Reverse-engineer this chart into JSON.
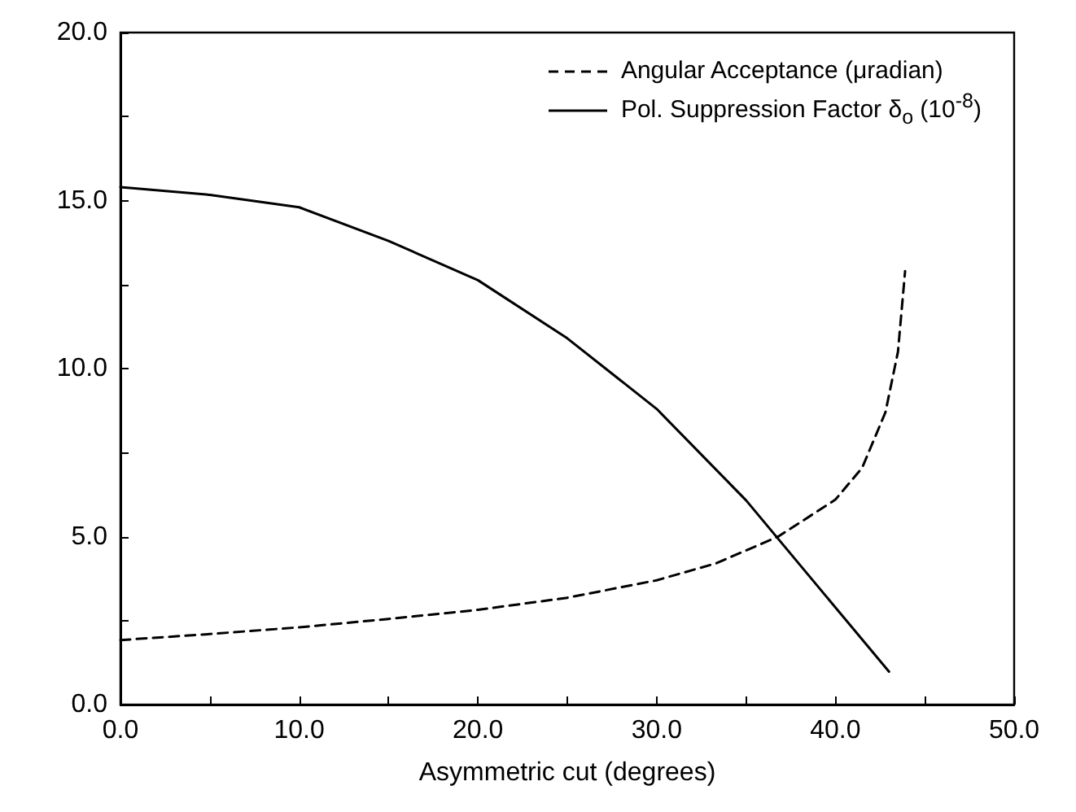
{
  "chart_data": {
    "type": "line",
    "xlabel": "Asymmetric cut (degrees)",
    "xlim": [
      0,
      50
    ],
    "ylim": [
      0,
      20
    ],
    "xticks": [
      {
        "value": 0,
        "label": "0.0"
      },
      {
        "value": 5,
        "label": null
      },
      {
        "value": 10,
        "label": "10.0"
      },
      {
        "value": 15,
        "label": null
      },
      {
        "value": 20,
        "label": "20.0"
      },
      {
        "value": 25,
        "label": null
      },
      {
        "value": 30,
        "label": "30.0"
      },
      {
        "value": 35,
        "label": null
      },
      {
        "value": 40,
        "label": "40.0"
      },
      {
        "value": 45,
        "label": null
      },
      {
        "value": 50,
        "label": "50.0"
      }
    ],
    "yticks": [
      {
        "value": 0,
        "label": "0.0"
      },
      {
        "value": 2.5,
        "label": null
      },
      {
        "value": 5,
        "label": "5.0"
      },
      {
        "value": 7.5,
        "label": null
      },
      {
        "value": 10,
        "label": "10.0"
      },
      {
        "value": 12.5,
        "label": null
      },
      {
        "value": 15,
        "label": "15.0"
      },
      {
        "value": 17.5,
        "label": null
      },
      {
        "value": 20,
        "label": "20.0"
      }
    ],
    "grid": false,
    "legend": "top right",
    "marker": "none",
    "series": [
      {
        "name": "Angular Acceptance (μradian)",
        "color": "#000000",
        "line_style": "dashed",
        "x": [
          0,
          5,
          10,
          15,
          20,
          25,
          30,
          33.3,
          36.8,
          40,
          41.5,
          42.8,
          43.5,
          43.9
        ],
        "values": [
          1.92,
          2.1,
          2.3,
          2.55,
          2.82,
          3.18,
          3.7,
          4.2,
          5.0,
          6.1,
          7.05,
          8.7,
          10.5,
          12.9
        ]
      },
      {
        "name": "Pol. Suppression Factor δ$_{o}$ (10$^{-8}$)",
        "color": "#000000",
        "line_style": "solid",
        "x": [
          0,
          5,
          10,
          15,
          20,
          25,
          30,
          35,
          43
        ],
        "values": [
          15.4,
          15.17,
          14.8,
          13.8,
          12.63,
          10.9,
          8.8,
          6.08,
          0.98
        ]
      }
    ]
  }
}
